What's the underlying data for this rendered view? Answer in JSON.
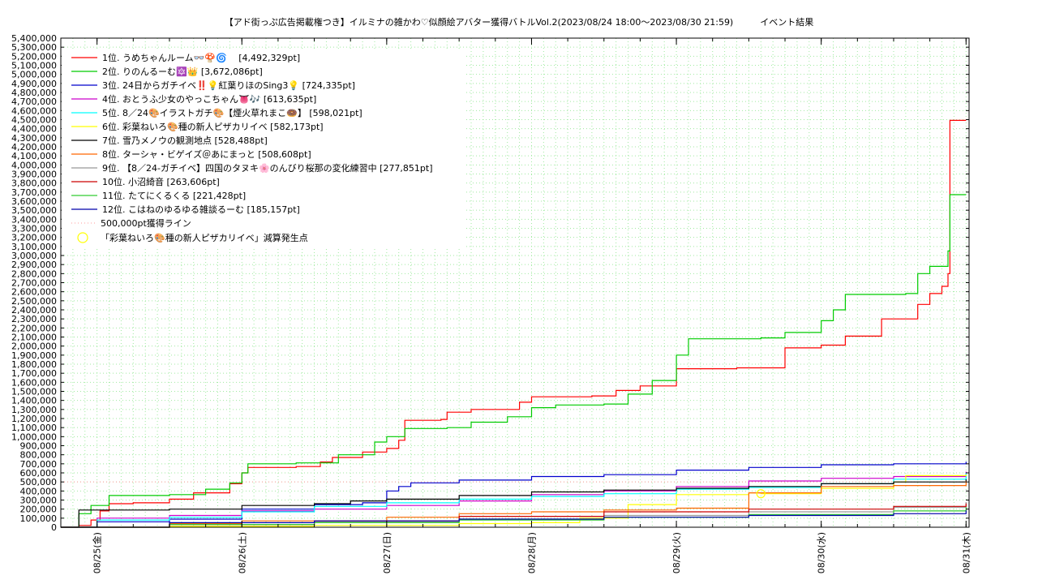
{
  "chart_data": {
    "type": "line",
    "title": "【アド街っぷ広告掲載権つき】イルミナの雑かわ♡似顔絵アバター獲得バトルVol.2(2023/08/24 18:00～2023/08/30 21:59)　　　イベント結果",
    "xlabel": "",
    "ylabel": "",
    "ylim": [
      0,
      5400000
    ],
    "y_tick_step": 100000,
    "y_ticks": [
      "0",
      "100,000",
      "200,000",
      "300,000",
      "400,000",
      "500,000",
      "600,000",
      "700,000",
      "800,000",
      "900,000",
      "1,000,000",
      "1,100,000",
      "1,200,000",
      "1,300,000",
      "1,400,000",
      "1,500,000",
      "1,600,000",
      "1,700,000",
      "1,800,000",
      "1,900,000",
      "2,000,000",
      "2,100,000",
      "2,200,000",
      "2,300,000",
      "2,400,000",
      "2,500,000",
      "2,600,000",
      "2,700,000",
      "2,800,000",
      "2,900,000",
      "3,000,000",
      "3,100,000",
      "3,200,000",
      "3,300,000",
      "3,400,000",
      "3,500,000",
      "3,600,000",
      "3,700,000",
      "3,800,000",
      "3,900,000",
      "4,000,000",
      "4,100,000",
      "4,200,000",
      "4,300,000",
      "4,400,000",
      "4,500,000",
      "4,600,000",
      "4,700,000",
      "4,800,000",
      "4,900,000",
      "5,000,000",
      "5,100,000",
      "5,200,000",
      "5,300,000",
      "5,400,000"
    ],
    "x_range": [
      "2023-08-24 18:00",
      "2023-08-31 00:30"
    ],
    "x_ticks": [
      {
        "date": "2023-08-25 00:00",
        "label": "08/25(金)"
      },
      {
        "date": "2023-08-26 00:00",
        "label": "08/26(土)"
      },
      {
        "date": "2023-08-27 00:00",
        "label": "08/27(日)"
      },
      {
        "date": "2023-08-28 00:00",
        "label": "08/28(月)"
      },
      {
        "date": "2023-08-29 00:00",
        "label": "08/29(火)"
      },
      {
        "date": "2023-08-30 00:00",
        "label": "08/30(水)"
      },
      {
        "date": "2023-08-31 00:00",
        "label": "08/31(木)"
      }
    ],
    "grid": true,
    "legend_position": "top-left",
    "reference_line": {
      "name": "500,000pt獲得ライン",
      "value": 500000,
      "color": "#ff9999"
    },
    "marker": {
      "name": "「彩葉ねいろ🎨種の新人ピザカリイベ」減算発生点",
      "color": "#ffff00",
      "x": "2023-08-29 14:00",
      "y": 370000
    },
    "series": [
      {
        "name": "1位. うめちゃんルーム👓🍄🌀　 [4,492,329pt]",
        "color": "#ff0000",
        "points": [
          [
            "2023-08-24 18:00",
            0
          ],
          [
            "2023-08-24 21:00",
            20000
          ],
          [
            "2023-08-24 23:00",
            80000
          ],
          [
            "2023-08-25 00:30",
            180000
          ],
          [
            "2023-08-25 02:00",
            260000
          ],
          [
            "2023-08-25 06:00",
            270000
          ],
          [
            "2023-08-25 12:00",
            310000
          ],
          [
            "2023-08-25 16:00",
            380000
          ],
          [
            "2023-08-25 22:00",
            480000
          ],
          [
            "2023-08-26 00:00",
            600000
          ],
          [
            "2023-08-26 01:00",
            660000
          ],
          [
            "2023-08-26 09:00",
            670000
          ],
          [
            "2023-08-26 13:00",
            720000
          ],
          [
            "2023-08-26 15:00",
            770000
          ],
          [
            "2023-08-26 20:00",
            830000
          ],
          [
            "2023-08-27 00:00",
            870000
          ],
          [
            "2023-08-27 02:00",
            960000
          ],
          [
            "2023-08-27 03:00",
            1180000
          ],
          [
            "2023-08-27 09:00",
            1190000
          ],
          [
            "2023-08-27 10:00",
            1270000
          ],
          [
            "2023-08-27 14:00",
            1300000
          ],
          [
            "2023-08-27 22:00",
            1380000
          ],
          [
            "2023-08-28 00:00",
            1440000
          ],
          [
            "2023-08-28 10:00",
            1450000
          ],
          [
            "2023-08-28 14:00",
            1510000
          ],
          [
            "2023-08-28 18:00",
            1560000
          ],
          [
            "2023-08-29 00:00",
            1750000
          ],
          [
            "2023-08-29 10:00",
            1760000
          ],
          [
            "2023-08-29 18:00",
            1980000
          ],
          [
            "2023-08-30 00:00",
            2010000
          ],
          [
            "2023-08-30 04:00",
            2110000
          ],
          [
            "2023-08-30 10:00",
            2300000
          ],
          [
            "2023-08-30 16:00",
            2460000
          ],
          [
            "2023-08-30 18:00",
            2580000
          ],
          [
            "2023-08-30 20:00",
            2660000
          ],
          [
            "2023-08-30 21:00",
            2800000
          ],
          [
            "2023-08-30 21:20",
            4492329
          ],
          [
            "2023-08-31 00:00",
            4492329
          ]
        ]
      },
      {
        "name": "2位. りのんるーむ🔯👑 [3,672,086pt]",
        "color": "#00cc00",
        "points": [
          [
            "2023-08-24 18:00",
            0
          ],
          [
            "2023-08-24 21:00",
            150000
          ],
          [
            "2023-08-24 23:00",
            240000
          ],
          [
            "2023-08-25 02:00",
            350000
          ],
          [
            "2023-08-25 12:00",
            360000
          ],
          [
            "2023-08-25 18:00",
            420000
          ],
          [
            "2023-08-25 22:00",
            490000
          ],
          [
            "2023-08-26 00:00",
            600000
          ],
          [
            "2023-08-26 01:00",
            700000
          ],
          [
            "2023-08-26 09:00",
            710000
          ],
          [
            "2023-08-26 16:00",
            800000
          ],
          [
            "2023-08-26 22:00",
            940000
          ],
          [
            "2023-08-27 00:00",
            1000000
          ],
          [
            "2023-08-27 03:00",
            1090000
          ],
          [
            "2023-08-27 10:00",
            1100000
          ],
          [
            "2023-08-27 14:00",
            1160000
          ],
          [
            "2023-08-27 20:00",
            1220000
          ],
          [
            "2023-08-28 00:00",
            1320000
          ],
          [
            "2023-08-28 04:00",
            1350000
          ],
          [
            "2023-08-28 12:00",
            1360000
          ],
          [
            "2023-08-28 16:00",
            1470000
          ],
          [
            "2023-08-28 20:00",
            1620000
          ],
          [
            "2023-08-29 00:00",
            1900000
          ],
          [
            "2023-08-29 02:00",
            2080000
          ],
          [
            "2023-08-29 14:00",
            2090000
          ],
          [
            "2023-08-29 18:00",
            2150000
          ],
          [
            "2023-08-30 00:00",
            2280000
          ],
          [
            "2023-08-30 02:00",
            2400000
          ],
          [
            "2023-08-30 04:00",
            2570000
          ],
          [
            "2023-08-30 14:00",
            2580000
          ],
          [
            "2023-08-30 16:00",
            2800000
          ],
          [
            "2023-08-30 18:00",
            2880000
          ],
          [
            "2023-08-30 21:00",
            3050000
          ],
          [
            "2023-08-30 21:20",
            3672086
          ],
          [
            "2023-08-31 00:00",
            3672086
          ]
        ]
      },
      {
        "name": "3位. 24日からガチイベ‼️💡紅葉りほのSing3💡 [724,335pt]",
        "color": "#0000cc",
        "points": [
          [
            "2023-08-24 18:00",
            0
          ],
          [
            "2023-08-25 00:00",
            60000
          ],
          [
            "2023-08-25 12:00",
            90000
          ],
          [
            "2023-08-26 00:00",
            200000
          ],
          [
            "2023-08-26 12:00",
            250000
          ],
          [
            "2023-08-26 20:00",
            270000
          ],
          [
            "2023-08-27 00:00",
            400000
          ],
          [
            "2023-08-27 02:00",
            450000
          ],
          [
            "2023-08-27 04:00",
            490000
          ],
          [
            "2023-08-27 12:00",
            520000
          ],
          [
            "2023-08-28 00:00",
            560000
          ],
          [
            "2023-08-28 12:00",
            580000
          ],
          [
            "2023-08-29 00:00",
            630000
          ],
          [
            "2023-08-29 12:00",
            660000
          ],
          [
            "2023-08-30 00:00",
            690000
          ],
          [
            "2023-08-30 12:00",
            700000
          ],
          [
            "2023-08-31 00:00",
            724335
          ]
        ]
      },
      {
        "name": "4位. おとうふ少女のやっこちゃん👅🎶 [613,635pt]",
        "color": "#cc00cc",
        "points": [
          [
            "2023-08-24 18:00",
            0
          ],
          [
            "2023-08-25 00:00",
            100000
          ],
          [
            "2023-08-25 12:00",
            130000
          ],
          [
            "2023-08-26 00:00",
            180000
          ],
          [
            "2023-08-26 12:00",
            200000
          ],
          [
            "2023-08-27 00:00",
            240000
          ],
          [
            "2023-08-27 12:00",
            290000
          ],
          [
            "2023-08-28 00:00",
            360000
          ],
          [
            "2023-08-28 12:00",
            400000
          ],
          [
            "2023-08-29 00:00",
            450000
          ],
          [
            "2023-08-29 12:00",
            510000
          ],
          [
            "2023-08-30 00:00",
            540000
          ],
          [
            "2023-08-30 12:00",
            560000
          ],
          [
            "2023-08-31 00:00",
            613635
          ]
        ]
      },
      {
        "name": "5位. 8／24🎨イラストガチ🎨【煙火草れまこ🍩】 [598,021pt]",
        "color": "#00ffff",
        "points": [
          [
            "2023-08-24 18:00",
            0
          ],
          [
            "2023-08-25 00:00",
            80000
          ],
          [
            "2023-08-25 12:00",
            110000
          ],
          [
            "2023-08-26 00:00",
            170000
          ],
          [
            "2023-08-26 12:00",
            230000
          ],
          [
            "2023-08-27 00:00",
            270000
          ],
          [
            "2023-08-27 12:00",
            310000
          ],
          [
            "2023-08-28 00:00",
            340000
          ],
          [
            "2023-08-28 12:00",
            370000
          ],
          [
            "2023-08-29 00:00",
            420000
          ],
          [
            "2023-08-29 12:00",
            440000
          ],
          [
            "2023-08-30 00:00",
            480000
          ],
          [
            "2023-08-30 12:00",
            530000
          ],
          [
            "2023-08-31 00:00",
            598021
          ]
        ]
      },
      {
        "name": "6位. 彩葉ねいろ🎨種の新人ピザカリイベ [582,173pt]",
        "color": "#ffff00",
        "points": [
          [
            "2023-08-24 18:00",
            0
          ],
          [
            "2023-08-25 12:00",
            10000
          ],
          [
            "2023-08-26 12:00",
            20000
          ],
          [
            "2023-08-27 12:00",
            40000
          ],
          [
            "2023-08-28 00:00",
            50000
          ],
          [
            "2023-08-28 08:00",
            100000
          ],
          [
            "2023-08-28 16:00",
            250000
          ],
          [
            "2023-08-29 00:00",
            360000
          ],
          [
            "2023-08-29 12:00",
            380000
          ],
          [
            "2023-08-29 14:00",
            370000
          ],
          [
            "2023-08-30 00:00",
            430000
          ],
          [
            "2023-08-30 12:00",
            500000
          ],
          [
            "2023-08-30 14:00",
            570000
          ],
          [
            "2023-08-31 00:00",
            582173
          ]
        ]
      },
      {
        "name": "7位. 雪乃メノウの観測地点 [528,488pt]",
        "color": "#000000",
        "points": [
          [
            "2023-08-24 18:00",
            0
          ],
          [
            "2023-08-24 21:00",
            190000
          ],
          [
            "2023-08-25 12:00",
            200000
          ],
          [
            "2023-08-26 00:00",
            240000
          ],
          [
            "2023-08-26 12:00",
            260000
          ],
          [
            "2023-08-26 18:00",
            290000
          ],
          [
            "2023-08-27 00:00",
            310000
          ],
          [
            "2023-08-27 12:00",
            350000
          ],
          [
            "2023-08-28 00:00",
            390000
          ],
          [
            "2023-08-28 12:00",
            410000
          ],
          [
            "2023-08-29 00:00",
            430000
          ],
          [
            "2023-08-29 12:00",
            450000
          ],
          [
            "2023-08-30 00:00",
            480000
          ],
          [
            "2023-08-30 12:00",
            500000
          ],
          [
            "2023-08-31 00:00",
            528488
          ]
        ]
      },
      {
        "name": "8位. ターシャ・ビゲイズ＠あにまっと [508,608pt]",
        "color": "#ff6600",
        "points": [
          [
            "2023-08-24 18:00",
            0
          ],
          [
            "2023-08-25 12:00",
            40000
          ],
          [
            "2023-08-26 00:00",
            70000
          ],
          [
            "2023-08-27 00:00",
            110000
          ],
          [
            "2023-08-27 12:00",
            150000
          ],
          [
            "2023-08-28 00:00",
            170000
          ],
          [
            "2023-08-28 12:00",
            190000
          ],
          [
            "2023-08-29 00:00",
            210000
          ],
          [
            "2023-08-29 12:00",
            380000
          ],
          [
            "2023-08-30 00:00",
            450000
          ],
          [
            "2023-08-30 12:00",
            460000
          ],
          [
            "2023-08-31 00:00",
            508608
          ]
        ]
      },
      {
        "name": "9位. 【8／24-ガチイベ】四国のタヌキ🌸のんびり桜那の変化練習中 [277,851pt]",
        "color": "#999999",
        "points": [
          [
            "2023-08-24 18:00",
            0
          ],
          [
            "2023-08-25 12:00",
            30000
          ],
          [
            "2023-08-26 12:00",
            60000
          ],
          [
            "2023-08-27 12:00",
            90000
          ],
          [
            "2023-08-28 12:00",
            130000
          ],
          [
            "2023-08-29 12:00",
            170000
          ],
          [
            "2023-08-30 12:00",
            220000
          ],
          [
            "2023-08-31 00:00",
            277851
          ]
        ]
      },
      {
        "name": "10位. 小沼綺音 [263,606pt]",
        "color": "#cc0000",
        "points": [
          [
            "2023-08-24 18:00",
            0
          ],
          [
            "2023-08-25 12:00",
            30000
          ],
          [
            "2023-08-26 12:00",
            70000
          ],
          [
            "2023-08-27 12:00",
            120000
          ],
          [
            "2023-08-28 12:00",
            170000
          ],
          [
            "2023-08-29 12:00",
            200000
          ],
          [
            "2023-08-30 12:00",
            230000
          ],
          [
            "2023-08-31 00:00",
            263606
          ]
        ]
      },
      {
        "name": "11位. たてにくるくる [221,428pt]",
        "color": "#33cc33",
        "points": [
          [
            "2023-08-24 18:00",
            0
          ],
          [
            "2023-08-25 12:00",
            30000
          ],
          [
            "2023-08-26 12:00",
            50000
          ],
          [
            "2023-08-27 12:00",
            80000
          ],
          [
            "2023-08-28 12:00",
            110000
          ],
          [
            "2023-08-29 12:00",
            140000
          ],
          [
            "2023-08-30 12:00",
            180000
          ],
          [
            "2023-08-31 00:00",
            221428
          ]
        ]
      },
      {
        "name": "12位. こはねのゆるゆる雑談るーむ [185,157pt]",
        "color": "#0000aa",
        "points": [
          [
            "2023-08-24 18:00",
            0
          ],
          [
            "2023-08-25 12:00",
            50000
          ],
          [
            "2023-08-26 12:00",
            70000
          ],
          [
            "2023-08-27 12:00",
            90000
          ],
          [
            "2023-08-28 12:00",
            110000
          ],
          [
            "2023-08-29 12:00",
            130000
          ],
          [
            "2023-08-30 12:00",
            150000
          ],
          [
            "2023-08-31 00:00",
            185157
          ]
        ]
      }
    ]
  }
}
